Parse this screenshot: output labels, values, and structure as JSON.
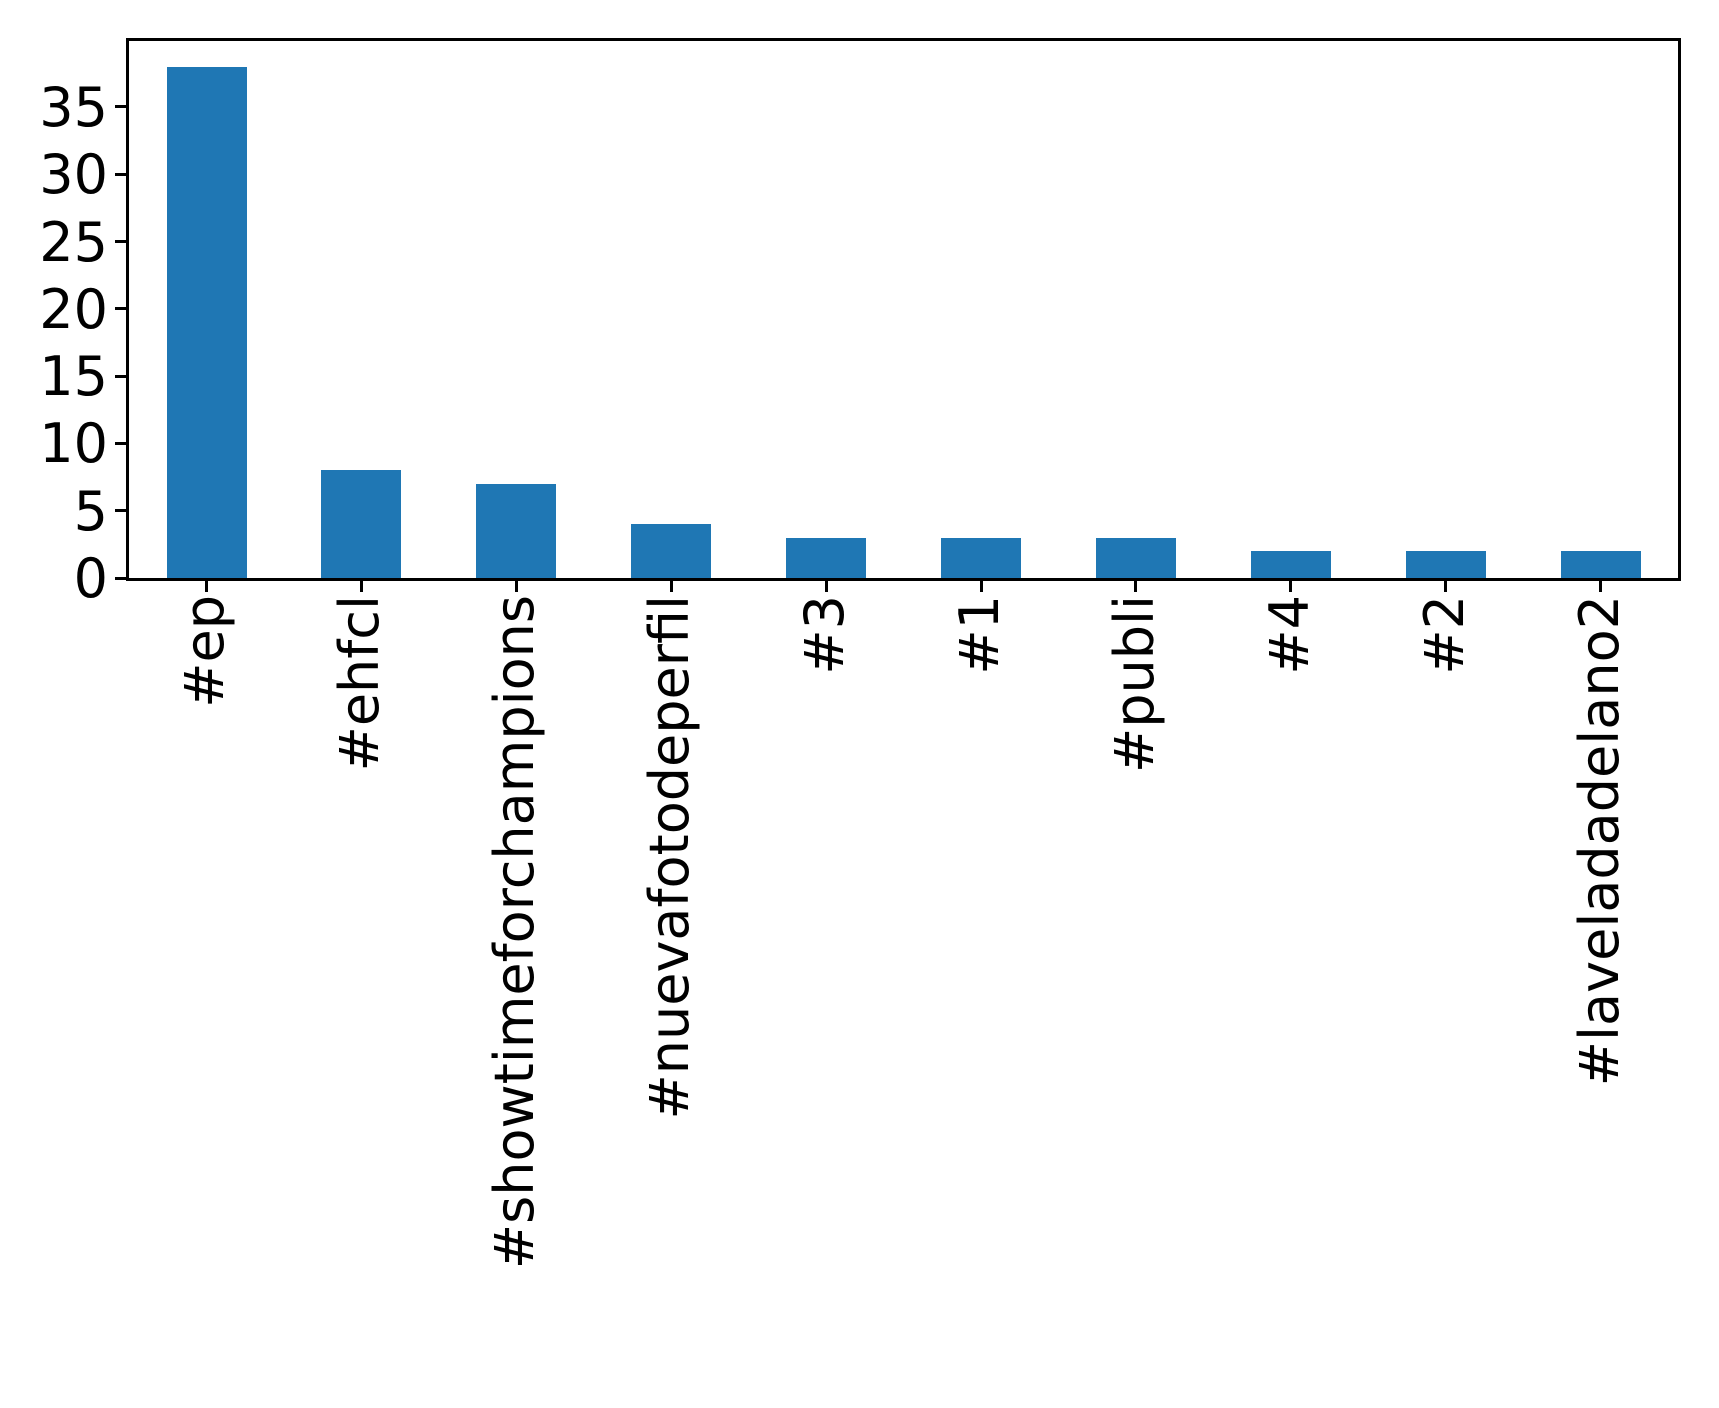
{
  "chart_data": {
    "type": "bar",
    "title": "",
    "xlabel": "",
    "ylabel": "",
    "categories": [
      "#ep",
      "#ehfcl",
      "#showtimeforchampions",
      "#nuevafotodeperfil",
      "#3",
      "#1",
      "#publi",
      "#4",
      "#2",
      "#laveladadelano2"
    ],
    "values": [
      38,
      8,
      7,
      4,
      3,
      3,
      3,
      2,
      2,
      2
    ],
    "yticks": [
      0,
      5,
      10,
      15,
      20,
      25,
      30,
      35
    ],
    "ylim": [
      0,
      39.9
    ],
    "x_tick_rotation": 90,
    "grid": false,
    "legend": null,
    "bar_color": "#1f77b4"
  },
  "colors": {
    "bar": "#1f77b4",
    "axis": "#000000",
    "text": "#000000",
    "background": "#ffffff"
  }
}
